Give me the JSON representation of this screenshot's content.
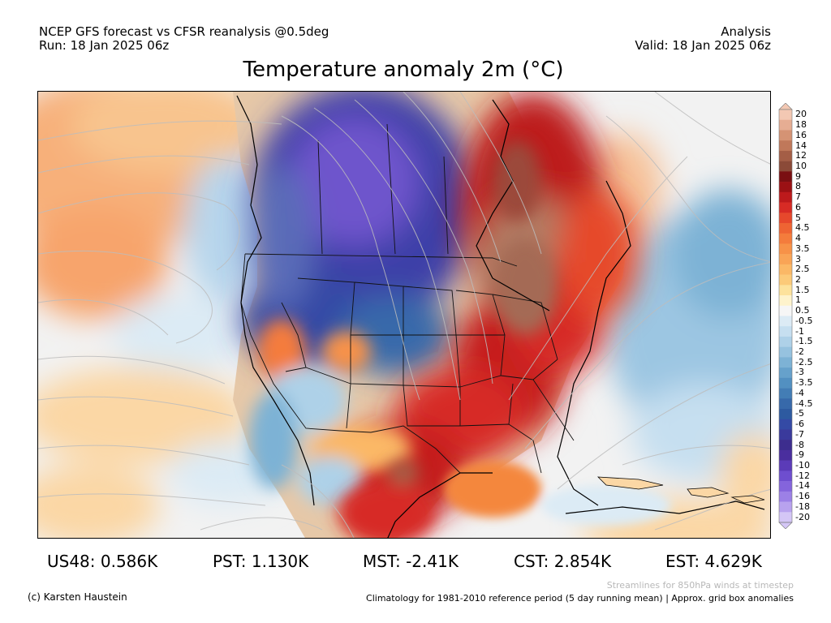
{
  "header": {
    "left_line1": "NCEP GFS forecast vs CFSR reanalysis @0.5deg",
    "left_line2": "Run: 18 Jan 2025 06z",
    "right_line1": "Analysis",
    "right_line2": "Valid: 18 Jan 2025 06z"
  },
  "title": "Temperature anomaly 2m (°C)",
  "colorbar": {
    "labels": [
      "20",
      "18",
      "16",
      "14",
      "12",
      "10",
      "9",
      "8",
      "7",
      "6",
      "5",
      "4.5",
      "4",
      "3.5",
      "3",
      "2.5",
      "2",
      "1.5",
      "1",
      "0.5",
      "-0.5",
      "-1",
      "-1.5",
      "-2",
      "-2.5",
      "-3",
      "-3.5",
      "-4",
      "-4.5",
      "-5",
      "-6",
      "-7",
      "-8",
      "-9",
      "-10",
      "-12",
      "-14",
      "-16",
      "-18",
      "-20"
    ],
    "colors": [
      "#f3c8b3",
      "#e6ad93",
      "#d59374",
      "#c0785a",
      "#a45e46",
      "#8b4a38",
      "#7a0f12",
      "#9b1114",
      "#bd1a1c",
      "#d72b25",
      "#e6482c",
      "#ee6433",
      "#f47c3c",
      "#f79248",
      "#f9a456",
      "#fbb866",
      "#fcca79",
      "#fde29c",
      "#fef3cc",
      "#f6f6f6",
      "#dcebf5",
      "#c6dff0",
      "#aed1e8",
      "#96c2df",
      "#7db2d5",
      "#66a1cb",
      "#5290c1",
      "#437db5",
      "#3769aa",
      "#2d5aa0",
      "#344aa5",
      "#3a3a9c",
      "#3d2d8e",
      "#4a2e9e",
      "#5b3bb8",
      "#6e4ecf",
      "#8464dc",
      "#9c80e6",
      "#b8a2ee",
      "#d4c6f6"
    ]
  },
  "stats": [
    {
      "label": "US48: 0.586K"
    },
    {
      "label": "PST: 1.130K"
    },
    {
      "label": "MST: -2.41K"
    },
    {
      "label": "CST: 2.854K"
    },
    {
      "label": "EST: 4.629K"
    }
  ],
  "footer": {
    "credit": "(c) Karsten Haustein",
    "streamlines": "Streamlines for 850hPa winds at timestep",
    "climatology": "Climatology for 1981-2010 reference period (5 day running mean) | Approx. grid box anomalies"
  }
}
